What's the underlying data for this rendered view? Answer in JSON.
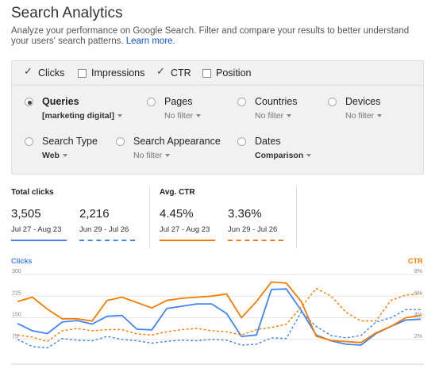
{
  "header": {
    "title": "Search Analytics",
    "subtitle": "Analyze your performance on Google Search. Filter and compare your results to better understand your users' search patterns.",
    "learn_more": "Learn more."
  },
  "metrics": [
    {
      "label": "Clicks",
      "checked": true
    },
    {
      "label": "Impressions",
      "checked": false
    },
    {
      "label": "CTR",
      "checked": true
    },
    {
      "label": "Position",
      "checked": false
    }
  ],
  "filters": {
    "queries": {
      "label": "Queries",
      "value": "[marketing digital]",
      "selected": true
    },
    "pages": {
      "label": "Pages",
      "value": "No filter",
      "selected": false
    },
    "countries": {
      "label": "Countries",
      "value": "No filter",
      "selected": false
    },
    "devices": {
      "label": "Devices",
      "value": "No filter",
      "selected": false
    },
    "search_type": {
      "label": "Search Type",
      "value": "Web",
      "selected": false
    },
    "search_appearance": {
      "label": "Search Appearance",
      "value": "No filter",
      "selected": false
    },
    "dates": {
      "label": "Dates",
      "value": "Comparison",
      "selected": false
    }
  },
  "totals": {
    "clicks": {
      "label": "Total clicks",
      "current": {
        "value": "3,505",
        "range": "Jul 27 - Aug 23"
      },
      "previous": {
        "value": "2,216",
        "range": "Jun 29 - Jul 26"
      }
    },
    "ctr": {
      "label": "Avg. CTR",
      "current": {
        "value": "4.45%",
        "range": "Jul 27 - Aug 23"
      },
      "previous": {
        "value": "3.36%",
        "range": "Jun 29 - Jul 26"
      }
    }
  },
  "colors": {
    "clicks": "#4285f4",
    "ctr": "#f57c00"
  },
  "chart_data": {
    "type": "line",
    "left_axis_label": "Clicks",
    "right_axis_label": "CTR",
    "left_ticks": [
      "300",
      "225",
      "150",
      "75"
    ],
    "right_ticks": [
      "8%",
      "6%",
      "4%",
      "2%"
    ],
    "ylim_left": [
      0,
      300
    ],
    "ylim_right": [
      0,
      8
    ],
    "series": [
      {
        "name": "Clicks Jul 27 - Aug 23",
        "axis": "left",
        "style": "solid",
        "color": "#4285f4",
        "values": [
          130,
          105,
          95,
          135,
          140,
          128,
          155,
          158,
          110,
          108,
          182,
          190,
          198,
          198,
          165,
          85,
          90,
          248,
          250,
          175,
          90,
          70,
          58,
          55,
          95,
          120,
          142,
          145
        ]
      },
      {
        "name": "Clicks Jun 29 - Jul 26",
        "axis": "left",
        "style": "dashed",
        "color": "#4285f4",
        "values": [
          75,
          50,
          45,
          78,
          72,
          70,
          85,
          75,
          70,
          62,
          68,
          72,
          70,
          75,
          72,
          55,
          58,
          80,
          78,
          170,
          120,
          88,
          80,
          88,
          135,
          150,
          178,
          178
        ]
      },
      {
        "name": "CTR Jul 27 - Aug 23",
        "axis": "right",
        "style": "solid",
        "color": "#f57c00",
        "values": [
          5.5,
          5.9,
          4.8,
          3.9,
          3.9,
          3.7,
          5.6,
          5.9,
          5.4,
          4.9,
          5.6,
          5.8,
          5.9,
          6.0,
          6.2,
          4.0,
          5.5,
          7.3,
          7.2,
          5.5,
          2.3,
          1.9,
          1.8,
          1.7,
          2.6,
          3.2,
          4.0,
          4.2
        ]
      },
      {
        "name": "CTR Jun 29 - Jul 26",
        "axis": "right",
        "style": "dashed",
        "color": "#f57c00",
        "values": [
          2.4,
          2.2,
          1.8,
          2.8,
          3.0,
          2.8,
          2.9,
          2.9,
          2.5,
          2.4,
          2.7,
          2.9,
          3.0,
          2.8,
          2.7,
          2.4,
          2.9,
          3.1,
          3.4,
          5.0,
          6.7,
          6.0,
          4.5,
          3.7,
          3.7,
          5.6,
          6.1,
          6.2
        ]
      }
    ]
  }
}
